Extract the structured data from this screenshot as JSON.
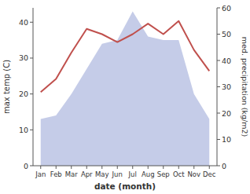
{
  "chart_data": {
    "type": "line",
    "x_label": "date (month)",
    "y_label": "max temp (C)",
    "y2_label": "med. precipitation (kg/m2)",
    "categories": [
      "Jan",
      "Feb",
      "Mar",
      "Apr",
      "May",
      "Jun",
      "Jul",
      "Aug",
      "Sep",
      "Oct",
      "Nov",
      "Dec"
    ],
    "series": [
      {
        "type": "area",
        "color": "#c5cce8",
        "values": [
          13,
          14,
          20,
          27,
          34,
          35,
          43,
          36,
          35,
          35,
          20,
          13
        ]
      },
      {
        "type": "line",
        "axis": "y2",
        "color": "#c0504d",
        "values": [
          28,
          33,
          43,
          52,
          50,
          47,
          50,
          54,
          50,
          55,
          44,
          36
        ]
      }
    ],
    "ylim": [
      0,
      44
    ],
    "yticks": [
      0,
      10,
      20,
      30,
      40
    ],
    "y2lim": [
      0,
      60
    ],
    "y2ticks": [
      0,
      10,
      20,
      30,
      40,
      50,
      60
    ],
    "grid": false
  }
}
